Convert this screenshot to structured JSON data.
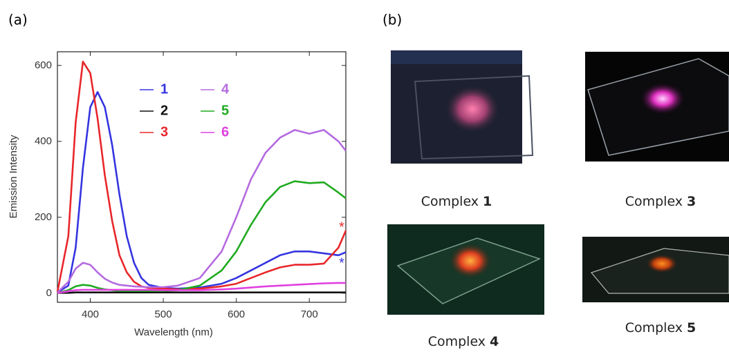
{
  "panels": {
    "a": "(a)",
    "b": "(b)"
  },
  "chart_data": {
    "type": "line",
    "x_label": "Wavelength (nm)",
    "y_label": "Emission Intensity",
    "x": [
      355,
      370,
      380,
      390,
      400,
      410,
      420,
      430,
      440,
      450,
      460,
      470,
      480,
      500,
      520,
      550,
      580,
      600,
      620,
      640,
      660,
      680,
      700,
      720,
      740,
      750
    ],
    "series": [
      {
        "name": "1",
        "color": "#3434e0",
        "values": [
          2,
          20,
          120,
          330,
          490,
          530,
          490,
          390,
          260,
          150,
          80,
          40,
          22,
          14,
          12,
          15,
          25,
          40,
          60,
          80,
          100,
          110,
          110,
          105,
          100,
          108
        ]
      },
      {
        "name": "2",
        "color": "#111111",
        "values": [
          1,
          1,
          2,
          2,
          2,
          2,
          2,
          2,
          2,
          2,
          2,
          2,
          2,
          2,
          2,
          2,
          2,
          2,
          2,
          2,
          2,
          2,
          2,
          2,
          2,
          2
        ]
      },
      {
        "name": "3",
        "color": "#e8262a",
        "values": [
          3,
          150,
          450,
          610,
          580,
          460,
          310,
          190,
          100,
          55,
          30,
          18,
          14,
          12,
          10,
          12,
          18,
          25,
          40,
          55,
          68,
          75,
          75,
          78,
          120,
          165
        ]
      },
      {
        "name": "4",
        "color": "#b46ae0",
        "values": [
          2,
          30,
          65,
          80,
          75,
          55,
          38,
          28,
          22,
          20,
          18,
          17,
          16,
          16,
          20,
          40,
          110,
          200,
          300,
          370,
          410,
          430,
          420,
          430,
          400,
          375
        ]
      },
      {
        "name": "5",
        "color": "#1faa1f",
        "values": [
          1,
          8,
          18,
          22,
          20,
          14,
          10,
          8,
          6,
          6,
          6,
          6,
          6,
          6,
          8,
          20,
          60,
          110,
          180,
          240,
          280,
          295,
          290,
          292,
          265,
          250
        ]
      },
      {
        "name": "6",
        "color": "#e040e0",
        "values": [
          1,
          5,
          8,
          9,
          9,
          9,
          9,
          9,
          9,
          9,
          9,
          9,
          9,
          8,
          8,
          8,
          10,
          12,
          15,
          18,
          20,
          22,
          24,
          26,
          27,
          27
        ]
      }
    ],
    "xlim": [
      355,
      750
    ],
    "xticks": [
      400,
      500,
      600,
      700
    ],
    "ylim": [
      -24,
      636
    ],
    "yticks": [
      0,
      200,
      400,
      600
    ],
    "annotations": [
      {
        "text": "*",
        "color": "#e8262a"
      },
      {
        "text": "*",
        "color": "#3434e0"
      }
    ]
  },
  "photos": [
    {
      "caption": "Complex",
      "number": "1"
    },
    {
      "caption": "Complex",
      "number": "3"
    },
    {
      "caption": "Complex",
      "number": "4"
    },
    {
      "caption": "Complex",
      "number": "5"
    }
  ]
}
